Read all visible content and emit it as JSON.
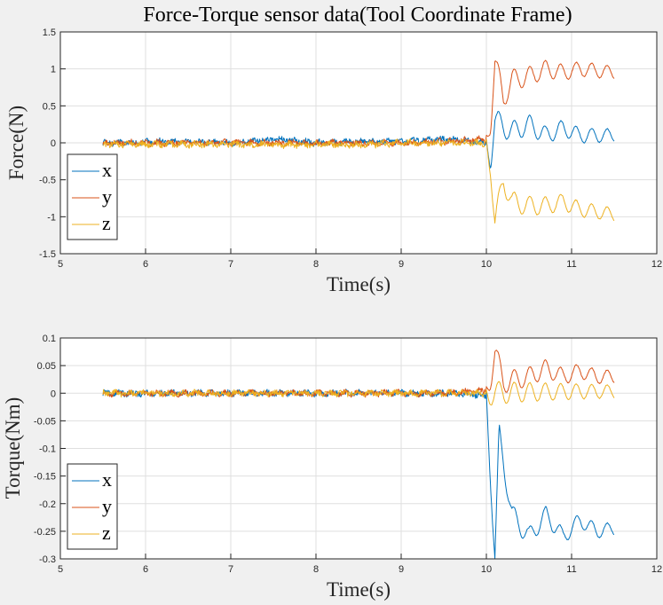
{
  "colors": {
    "x": "#0072bd",
    "y": "#d95319",
    "z": "#edb120"
  },
  "chart_data": [
    {
      "type": "line",
      "title": "Force-Torque sensor data(Tool Coordinate Frame)",
      "xlabel": "Time(s)",
      "ylabel": "Force(N)",
      "xlim": [
        5,
        12
      ],
      "ylim": [
        -1.5,
        1.5
      ],
      "xticks": [
        5,
        6,
        7,
        8,
        9,
        10,
        11,
        12
      ],
      "xtick_labels": [
        "5",
        "6",
        "7",
        "8",
        "9",
        "10",
        "11",
        "12"
      ],
      "yticks": [
        -1.5,
        -1,
        -0.5,
        0,
        0.5,
        1,
        1.5
      ],
      "ytick_labels": [
        "-1.5",
        "-1",
        "-0.5",
        "0",
        "0.5",
        "1",
        "1.5"
      ],
      "grid": true,
      "legend_position": "bottom-left",
      "series": [
        {
          "name": "x",
          "x": [
            5.5,
            6.5,
            7.0,
            7.5,
            8.0,
            8.5,
            9.0,
            9.5,
            10.0,
            10.05,
            10.1,
            10.3,
            10.5,
            10.7,
            10.9,
            11.1,
            11.5
          ],
          "values": [
            0.0,
            0.02,
            0.0,
            0.05,
            0.0,
            0.02,
            0.02,
            0.05,
            0.0,
            -0.2,
            0.3,
            0.15,
            0.25,
            0.1,
            0.2,
            0.1,
            0.1
          ]
        },
        {
          "name": "y",
          "x": [
            5.5,
            6.5,
            7.0,
            7.5,
            8.0,
            8.5,
            9.0,
            9.5,
            10.0,
            10.05,
            10.1,
            10.2,
            10.3,
            10.5,
            10.7,
            10.9,
            11.1,
            11.5
          ],
          "values": [
            0.0,
            0.0,
            0.0,
            0.0,
            0.0,
            0.0,
            0.0,
            0.02,
            0.05,
            0.3,
            1.1,
            0.6,
            0.85,
            0.9,
            1.0,
            0.95,
            1.0,
            0.95
          ]
        },
        {
          "name": "z",
          "x": [
            5.5,
            6.5,
            7.0,
            7.5,
            8.0,
            8.5,
            9.0,
            9.5,
            10.0,
            10.05,
            10.1,
            10.2,
            10.3,
            10.5,
            10.7,
            10.9,
            11.1,
            11.5
          ],
          "values": [
            -0.02,
            -0.02,
            -0.02,
            -0.03,
            -0.02,
            -0.03,
            0.0,
            0.0,
            0.0,
            -0.3,
            -1.08,
            -0.5,
            -0.8,
            -0.85,
            -0.85,
            -0.8,
            -0.9,
            -0.97
          ]
        }
      ]
    },
    {
      "type": "line",
      "xlabel": "Time(s)",
      "ylabel": "Torque(Nm)",
      "xlim": [
        5,
        12
      ],
      "ylim": [
        -0.3,
        0.1
      ],
      "xticks": [
        5,
        6,
        7,
        8,
        9,
        10,
        11,
        12
      ],
      "xtick_labels": [
        "5",
        "6",
        "7",
        "8",
        "9",
        "10",
        "11",
        "12"
      ],
      "yticks": [
        -0.3,
        -0.25,
        -0.2,
        -0.15,
        -0.1,
        -0.05,
        0,
        0.05,
        0.1
      ],
      "ytick_labels": [
        "-0.3",
        "-0.25",
        "-0.2",
        "-0.15",
        "-0.1",
        "-0.05",
        "0",
        "0.05",
        "0.1"
      ],
      "grid": true,
      "legend_position": "bottom-left",
      "series": [
        {
          "name": "x",
          "x": [
            5.5,
            6.5,
            7.0,
            7.5,
            8.0,
            8.5,
            9.0,
            9.5,
            9.9,
            10.0,
            10.05,
            10.1,
            10.15,
            10.3,
            10.5,
            10.7,
            10.9,
            11.1,
            11.3,
            11.5
          ],
          "values": [
            0.0,
            0.0,
            0.0,
            0.0,
            0.0,
            0.0,
            0.0,
            0.0,
            -0.003,
            -0.005,
            -0.15,
            -0.3,
            -0.075,
            -0.22,
            -0.26,
            -0.22,
            -0.26,
            -0.23,
            -0.25,
            -0.245
          ]
        },
        {
          "name": "y",
          "x": [
            5.5,
            6.5,
            7.0,
            7.5,
            8.0,
            8.5,
            9.0,
            9.5,
            10.0,
            10.05,
            10.1,
            10.2,
            10.5,
            10.7,
            10.9,
            11.1,
            11.3,
            11.5
          ],
          "values": [
            0.0,
            0.0,
            0.0,
            0.0,
            0.0,
            0.0,
            0.0,
            0.0,
            0.005,
            0.03,
            0.075,
            0.02,
            0.03,
            0.045,
            0.03,
            0.04,
            0.03,
            0.03
          ]
        },
        {
          "name": "z",
          "x": [
            5.5,
            6.5,
            7.5,
            8.5,
            9.5,
            10.0,
            10.5,
            11.0,
            11.5
          ],
          "values": [
            0.0,
            0.0,
            0.0,
            0.0,
            0.0,
            0.0,
            0.002,
            0.003,
            0.003
          ]
        }
      ]
    }
  ]
}
